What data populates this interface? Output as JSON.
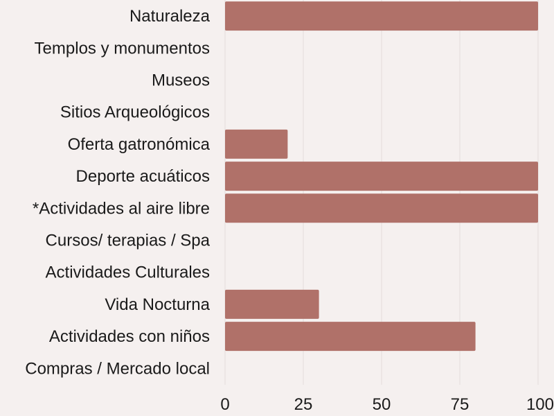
{
  "colors": {
    "background": "#f5f0ef",
    "bar": "#b07169",
    "grid": "#e3dcdb",
    "text": "#1a1a1a"
  },
  "chart_data": {
    "type": "bar",
    "orientation": "horizontal",
    "title": "",
    "xlabel": "",
    "ylabel": "",
    "categories": [
      "Naturaleza",
      "Templos y monumentos",
      "Museos",
      "Sitios Arqueológicos",
      "Oferta gatronómica",
      "Deporte acuáticos",
      "*Actividades al aire libre",
      "Cursos/ terapias / Spa",
      "Actividades Culturales",
      "Vida Nocturna",
      "Actividades con niños",
      "Compras / Mercado local"
    ],
    "values": [
      100,
      0,
      0,
      0,
      20,
      100,
      100,
      0,
      0,
      30,
      80,
      0
    ],
    "xlim": [
      0,
      100
    ],
    "xticks": [
      0,
      25,
      50,
      75,
      100
    ],
    "xtick_labels": [
      "0",
      "25",
      "50",
      "75",
      "100"
    ],
    "grid": true,
    "legend": "none"
  }
}
